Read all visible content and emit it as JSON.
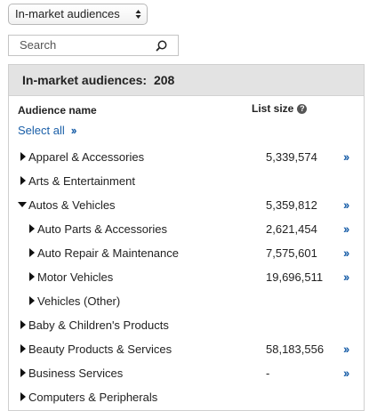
{
  "audience_select": {
    "value": "In-market audiences"
  },
  "search": {
    "placeholder": "Search"
  },
  "panel": {
    "title": "In-market audiences:",
    "count": "208",
    "col_name": "Audience name",
    "col_size": "List size",
    "select_all": "Select all"
  },
  "rows": [
    {
      "label": "Apparel & Accessories",
      "size": "5,339,574"
    },
    {
      "label": "Arts & Entertainment",
      "size": ""
    },
    {
      "label": "Autos & Vehicles",
      "size": "5,359,812"
    },
    {
      "label": "Auto Parts & Accessories",
      "size": "2,621,454"
    },
    {
      "label": "Auto Repair & Maintenance",
      "size": "7,575,601"
    },
    {
      "label": "Motor Vehicles",
      "size": "19,696,511"
    },
    {
      "label": "Vehicles (Other)",
      "size": ""
    },
    {
      "label": "Baby & Children's Products",
      "size": ""
    },
    {
      "label": "Beauty Products & Services",
      "size": "58,183,556"
    },
    {
      "label": "Business Services",
      "size": "-"
    },
    {
      "label": "Computers & Peripherals",
      "size": ""
    }
  ],
  "colors": {
    "link": "#1a5fa8",
    "header_bg": "#e3e3e3"
  },
  "icons": {
    "search": "magnifier-icon",
    "help": "question-circle-icon",
    "add": "double-chevron-right-icon"
  }
}
